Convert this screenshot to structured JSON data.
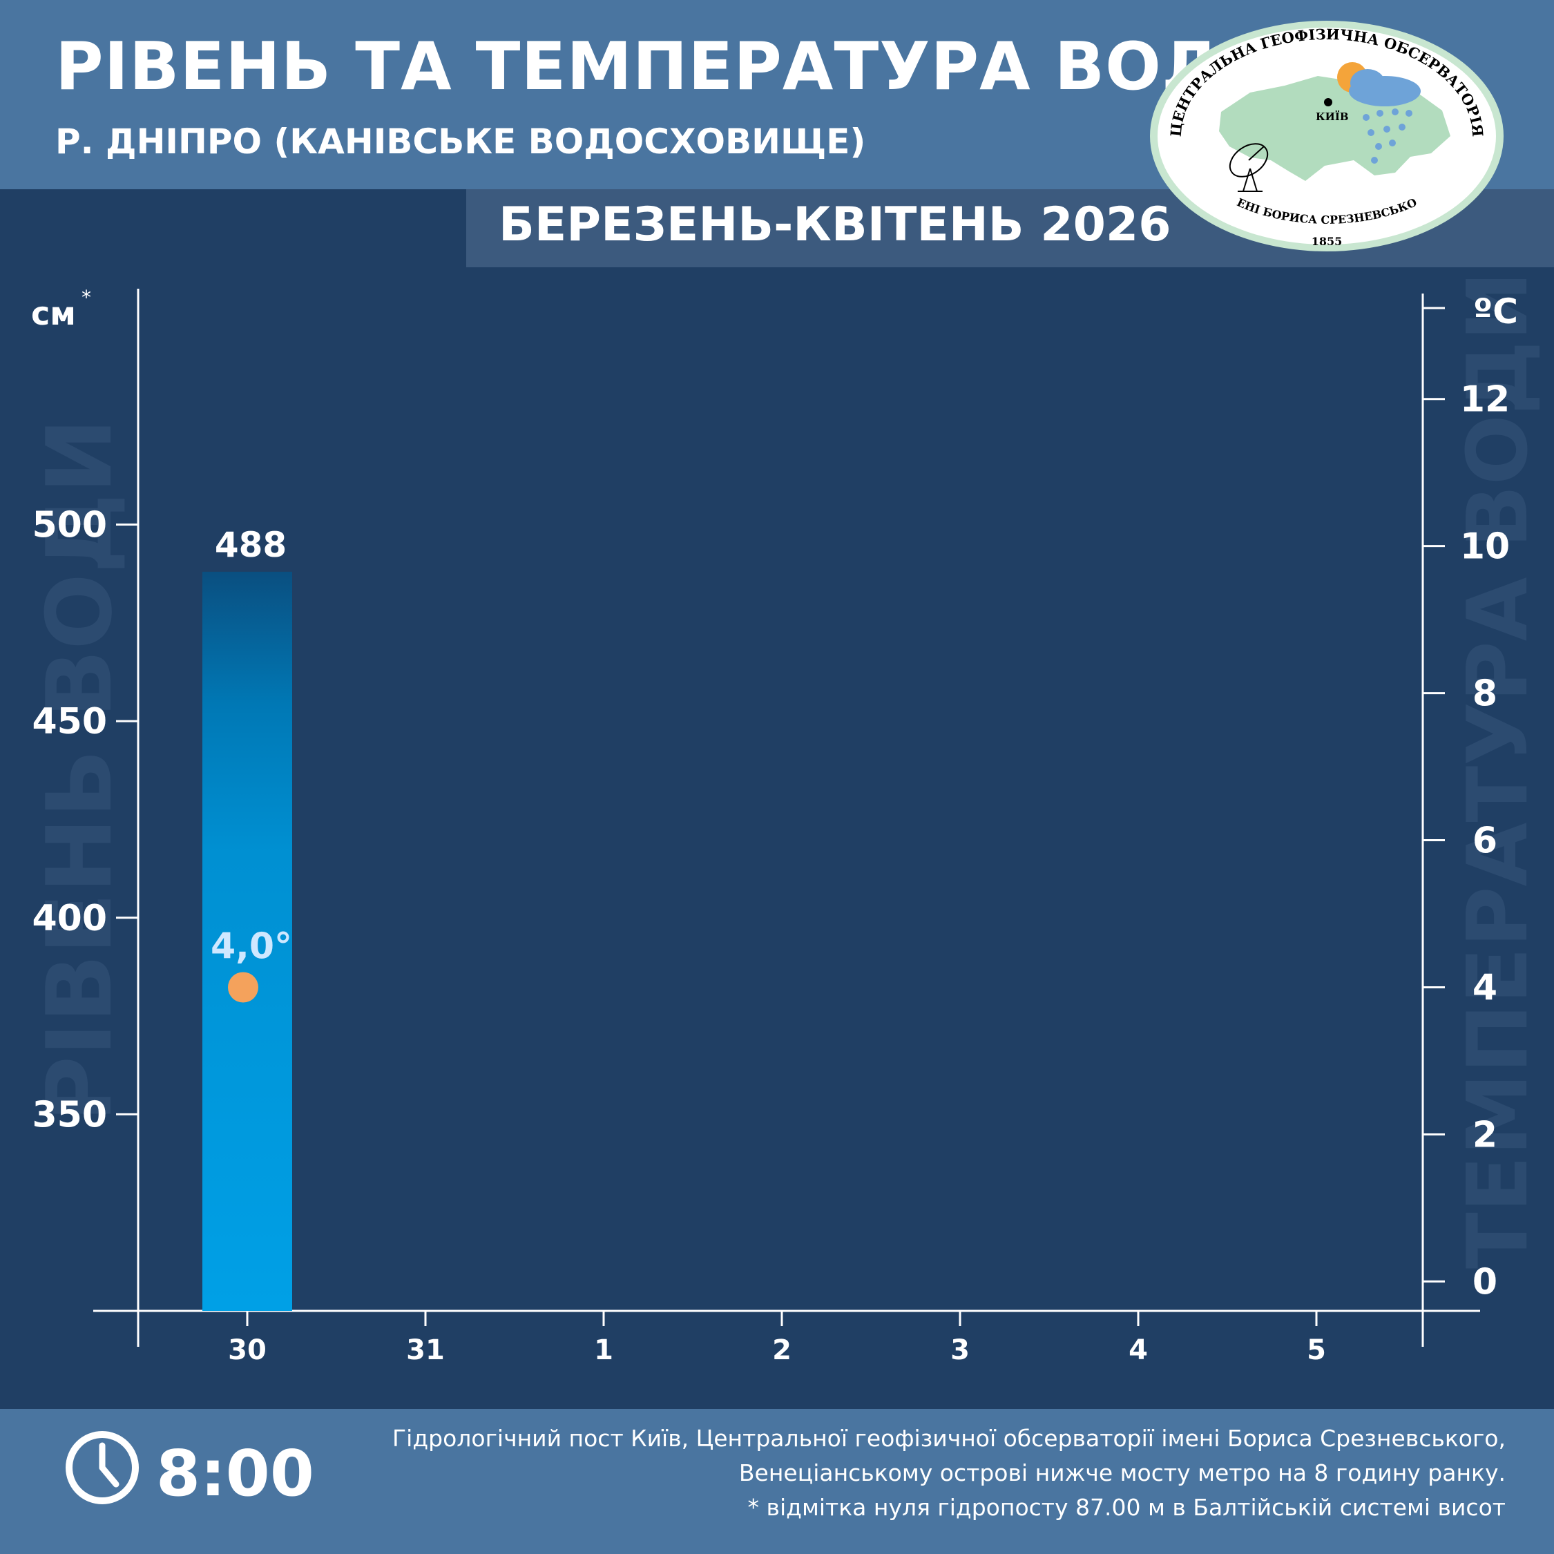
{
  "header": {
    "title": "РІВЕНЬ ТА ТЕМПЕРАТУРА ВОДИ",
    "subtitle": "Р. ДНІПРО (КАНІВСЬКЕ ВОДОСХОВИЩЕ)",
    "period": "БЕРЕЗЕНЬ-КВІТЕНЬ 2026"
  },
  "logo": {
    "top_text": "ЦЕНТРАЛЬНА ГЕОФІЗИЧНА ОБСЕРВАТОРІЯ",
    "bottom_text": "ІМЕНІ БОРИСА СРЕЗНЕВСЬКОГО",
    "year": "1855",
    "city": "КИЇВ"
  },
  "chart_data": {
    "type": "bar",
    "categories": [
      "30",
      "31",
      "1",
      "2",
      "3",
      "4",
      "5"
    ],
    "level_series": {
      "values": [
        488,
        null,
        null,
        null,
        null,
        null,
        null
      ]
    },
    "level_labels": [
      "488",
      "",
      "",
      "",
      "",
      "",
      ""
    ],
    "temperature_series": {
      "values": [
        4.0,
        null,
        null,
        null,
        null,
        null,
        null
      ]
    },
    "temperature_labels": [
      "4,0°",
      "",
      "",
      "",
      "",
      "",
      ""
    ],
    "left_axis": {
      "unit": "см",
      "unit_mark": "*",
      "watermark": "РІВЕНЬ ВОДИ",
      "ticks": [
        350,
        400,
        450,
        500
      ],
      "ylim": [
        300,
        560
      ]
    },
    "right_axis": {
      "unit": "ºC",
      "watermark": "ТЕМПЕРАТУРА ВОДИ",
      "ticks": [
        0,
        2,
        4,
        6,
        8,
        10,
        12
      ],
      "ylim": [
        -0.4,
        13.5
      ]
    },
    "colors": {
      "bar_bottom": "#00a0e6",
      "bar_top": "#0a4f80",
      "temperature_dot": "#f4a25c",
      "temperature_label": "#cfe8ff"
    }
  },
  "footer": {
    "time": "8:00",
    "notes": [
      "Гідрологічний пост Київ, Центральної геофізичної обсерваторії імені Бориса Срезневського,",
      "Венеціанському острові нижче мосту метро  на 8 годину ранку.",
      "* відмітка нуля гідропосту 87.00 м в Балтійській системі висот"
    ]
  }
}
